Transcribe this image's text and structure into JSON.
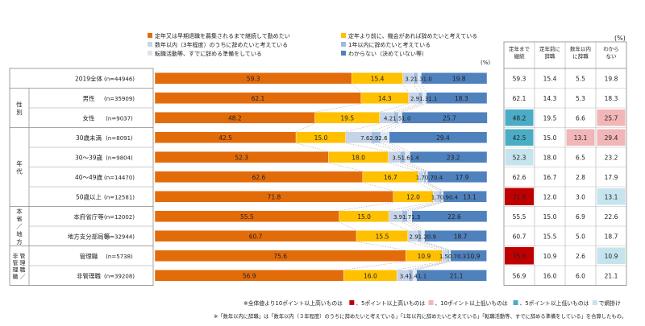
{
  "chart_data": {
    "type": "bar",
    "stacked": true,
    "orientation": "horizontal",
    "percent_label": "(%)",
    "table_percent_label": "(%)",
    "colors": {
      "until_recruit": "#e36c0a",
      "before_retire": "#ffc000",
      "within_years": "#c5d4e8",
      "within_1year": "#9fbadb",
      "transferring": "#dce6f1",
      "unknown": "#4f81bd",
      "high10": "#c00000",
      "high5": "#f2b5b8",
      "low10": "#4bacc6",
      "low5": "#c5e4ee"
    },
    "legend": [
      {
        "key": "until_recruit",
        "label": "定年又は早期退職を募集されるまで継続して勤めたい"
      },
      {
        "key": "before_retire",
        "label": "定年より前に、機会があれば辞めたいと考えている"
      },
      {
        "key": "within_years",
        "label": "数年以内（3年程度）のうちに辞めたいと考えている"
      },
      {
        "key": "within_1year",
        "label": "1年以内に辞めたいと考えている"
      },
      {
        "key": "transferring",
        "label": "転職活動等、すでに辞める準備をしている"
      },
      {
        "key": "unknown",
        "label": "わからない（決めていない等）"
      }
    ],
    "series_keys": [
      "until_recruit",
      "before_retire",
      "within_years",
      "within_1year",
      "transferring",
      "unknown"
    ],
    "groups": [
      {
        "label": "性別",
        "start": 1,
        "end": 2
      },
      {
        "label": "年代",
        "start": 3,
        "end": 6
      },
      {
        "label": "本省／地方",
        "start": 7,
        "end": 8
      },
      {
        "label": "管理職／非管理職",
        "start": 9,
        "end": 10
      }
    ],
    "rows": [
      {
        "label": "2019全体",
        "n": "(n=44946)",
        "values": [
          59.3,
          15.4,
          3.2,
          1.3,
          1.0,
          19.8
        ],
        "table": [
          "59.3",
          "15.4",
          "5.5",
          "19.8"
        ],
        "marks": [
          "",
          "",
          "",
          ""
        ]
      },
      {
        "label": "男性",
        "n": "(n=35909)",
        "values": [
          62.1,
          14.3,
          2.9,
          1.3,
          1.1,
          18.3
        ],
        "table": [
          "62.1",
          "14.3",
          "5.3",
          "18.3"
        ],
        "marks": [
          "",
          "",
          "",
          ""
        ]
      },
      {
        "label": "女性",
        "n": "(n=9037)",
        "values": [
          48.2,
          19.5,
          4.2,
          1.5,
          1.0,
          25.7
        ],
        "table": [
          "48.2",
          "19.5",
          "6.6",
          "25.7"
        ],
        "marks": [
          "low10",
          "",
          "",
          "high5"
        ]
      },
      {
        "label": "30歳未満",
        "n": "(n=8091)",
        "values": [
          42.5,
          15.0,
          7.6,
          2.9,
          2.6,
          29.4
        ],
        "table": [
          "42.5",
          "15.0",
          "13.1",
          "29.4"
        ],
        "marks": [
          "low10",
          "",
          "high5",
          "high5"
        ]
      },
      {
        "label": "30～39歳",
        "n": "(n=9804)",
        "values": [
          52.3,
          18.0,
          3.5,
          1.6,
          1.4,
          23.2
        ],
        "table": [
          "52.3",
          "18.0",
          "6.5",
          "23.2"
        ],
        "marks": [
          "low5",
          "",
          "",
          ""
        ]
      },
      {
        "label": "40～49歳",
        "n": "(n=14470)",
        "values": [
          62.6,
          16.7,
          1.7,
          0.7,
          0.4,
          17.9
        ],
        "table": [
          "62.6",
          "16.7",
          "2.8",
          "17.9"
        ],
        "marks": [
          "",
          "",
          "",
          ""
        ]
      },
      {
        "label": "50歳以上",
        "n": "(n=12581)",
        "values": [
          71.8,
          12.0,
          1.7,
          0.9,
          0.4,
          13.1
        ],
        "table": [
          "71.8",
          "12.0",
          "3.0",
          "13.1"
        ],
        "marks": [
          "high10",
          "",
          "",
          "low5"
        ]
      },
      {
        "label": "本府省庁等",
        "n": "(n=12002)",
        "values": [
          55.5,
          15.0,
          3.9,
          1.7,
          1.3,
          22.6
        ],
        "table": [
          "55.5",
          "15.0",
          "6.9",
          "22.6"
        ],
        "marks": [
          "",
          "",
          "",
          ""
        ]
      },
      {
        "label": "地方支分部局等",
        "n": "(n=32944)",
        "values": [
          60.7,
          15.5,
          2.9,
          1.2,
          0.9,
          18.7
        ],
        "table": [
          "60.7",
          "15.5",
          "5.0",
          "18.7"
        ],
        "marks": [
          "",
          "",
          "",
          ""
        ]
      },
      {
        "label": "管理職",
        "n": "(n=5738)",
        "values": [
          75.6,
          10.9,
          1.5,
          0.7,
          0.3,
          10.9
        ],
        "table": [
          "75.6",
          "10.9",
          "2.6",
          "10.9"
        ],
        "marks": [
          "high10",
          "",
          "",
          "low5"
        ]
      },
      {
        "label": "非管理職",
        "n": "(n=39208)",
        "values": [
          56.9,
          16.0,
          3.4,
          1.4,
          1.1,
          21.1
        ],
        "table": [
          "56.9",
          "16.0",
          "6.0",
          "21.1"
        ],
        "marks": [
          "",
          "",
          "",
          ""
        ]
      }
    ],
    "table_headers": [
      "定年まで\n継続",
      "定年前に\n辞職",
      "数年以内\nに辞職",
      "わから\nない"
    ],
    "notes": {
      "line1_parts": [
        "※全体値より10ポイント以上高いものは",
        "、5ポイント以上高いものは",
        "、10ポイント以上低いものは",
        "、5ポイント以上低いものは",
        "で網掛け"
      ],
      "line2": "※「数年以内に辞職」は「数年以内（３年程度）のうちに辞めたいと考えている」「1年以内に辞めたいと考えている」「転職活動等、すでに辞める準備をしている」を合算したもの。"
    }
  }
}
